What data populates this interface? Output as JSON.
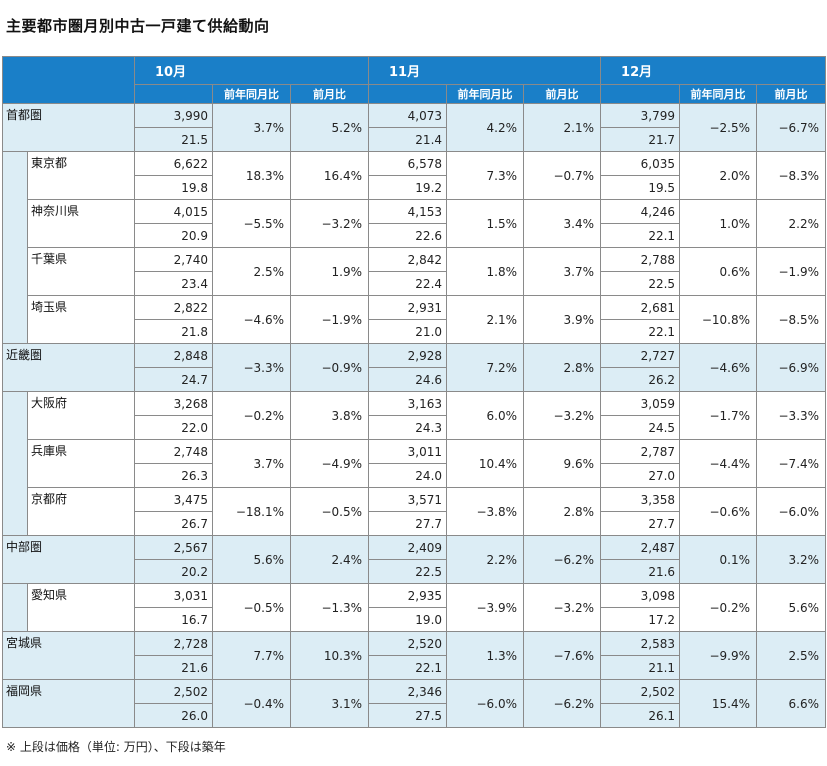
{
  "title": "主要都市圏月別中古一戸建て供給動向",
  "months": [
    "10月",
    "11月",
    "12月"
  ],
  "subheaders": {
    "yoy": "前年同月比",
    "mom": "前月比"
  },
  "note": "※ 上段は価格（単位: 万円）、下段は築年",
  "rows": [
    {
      "name": "首都圏",
      "level": 0,
      "m": [
        {
          "price": "3,990",
          "age": "21.5",
          "yoy": "3.7%",
          "mom": "5.2%"
        },
        {
          "price": "4,073",
          "age": "21.4",
          "yoy": "4.2%",
          "mom": "2.1%"
        },
        {
          "price": "3,799",
          "age": "21.7",
          "yoy": "−2.5%",
          "mom": "−6.7%"
        }
      ]
    },
    {
      "name": "東京都",
      "level": 1,
      "m": [
        {
          "price": "6,622",
          "age": "19.8",
          "yoy": "18.3%",
          "mom": "16.4%"
        },
        {
          "price": "6,578",
          "age": "19.2",
          "yoy": "7.3%",
          "mom": "−0.7%"
        },
        {
          "price": "6,035",
          "age": "19.5",
          "yoy": "2.0%",
          "mom": "−8.3%"
        }
      ]
    },
    {
      "name": "神奈川県",
      "level": 1,
      "m": [
        {
          "price": "4,015",
          "age": "20.9",
          "yoy": "−5.5%",
          "mom": "−3.2%"
        },
        {
          "price": "4,153",
          "age": "22.6",
          "yoy": "1.5%",
          "mom": "3.4%"
        },
        {
          "price": "4,246",
          "age": "22.1",
          "yoy": "1.0%",
          "mom": "2.2%"
        }
      ]
    },
    {
      "name": "千葉県",
      "level": 1,
      "m": [
        {
          "price": "2,740",
          "age": "23.4",
          "yoy": "2.5%",
          "mom": "1.9%"
        },
        {
          "price": "2,842",
          "age": "22.4",
          "yoy": "1.8%",
          "mom": "3.7%"
        },
        {
          "price": "2,788",
          "age": "22.5",
          "yoy": "0.6%",
          "mom": "−1.9%"
        }
      ]
    },
    {
      "name": "埼玉県",
      "level": 1,
      "m": [
        {
          "price": "2,822",
          "age": "21.8",
          "yoy": "−4.6%",
          "mom": "−1.9%"
        },
        {
          "price": "2,931",
          "age": "21.0",
          "yoy": "2.1%",
          "mom": "3.9%"
        },
        {
          "price": "2,681",
          "age": "22.1",
          "yoy": "−10.8%",
          "mom": "−8.5%"
        }
      ]
    },
    {
      "name": "近畿圏",
      "level": 0,
      "m": [
        {
          "price": "2,848",
          "age": "24.7",
          "yoy": "−3.3%",
          "mom": "−0.9%"
        },
        {
          "price": "2,928",
          "age": "24.6",
          "yoy": "7.2%",
          "mom": "2.8%"
        },
        {
          "price": "2,727",
          "age": "26.2",
          "yoy": "−4.6%",
          "mom": "−6.9%"
        }
      ]
    },
    {
      "name": "大阪府",
      "level": 1,
      "m": [
        {
          "price": "3,268",
          "age": "22.0",
          "yoy": "−0.2%",
          "mom": "3.8%"
        },
        {
          "price": "3,163",
          "age": "24.3",
          "yoy": "6.0%",
          "mom": "−3.2%"
        },
        {
          "price": "3,059",
          "age": "24.5",
          "yoy": "−1.7%",
          "mom": "−3.3%"
        }
      ]
    },
    {
      "name": "兵庫県",
      "level": 1,
      "m": [
        {
          "price": "2,748",
          "age": "26.3",
          "yoy": "3.7%",
          "mom": "−4.9%"
        },
        {
          "price": "3,011",
          "age": "24.0",
          "yoy": "10.4%",
          "mom": "9.6%"
        },
        {
          "price": "2,787",
          "age": "27.0",
          "yoy": "−4.4%",
          "mom": "−7.4%"
        }
      ]
    },
    {
      "name": "京都府",
      "level": 1,
      "m": [
        {
          "price": "3,475",
          "age": "26.7",
          "yoy": "−18.1%",
          "mom": "−0.5%"
        },
        {
          "price": "3,571",
          "age": "27.7",
          "yoy": "−3.8%",
          "mom": "2.8%"
        },
        {
          "price": "3,358",
          "age": "27.7",
          "yoy": "−0.6%",
          "mom": "−6.0%"
        }
      ]
    },
    {
      "name": "中部圏",
      "level": 0,
      "m": [
        {
          "price": "2,567",
          "age": "20.2",
          "yoy": "5.6%",
          "mom": "2.4%"
        },
        {
          "price": "2,409",
          "age": "22.5",
          "yoy": "2.2%",
          "mom": "−6.2%"
        },
        {
          "price": "2,487",
          "age": "21.6",
          "yoy": "0.1%",
          "mom": "3.2%"
        }
      ]
    },
    {
      "name": "愛知県",
      "level": 1,
      "m": [
        {
          "price": "3,031",
          "age": "16.7",
          "yoy": "−0.5%",
          "mom": "−1.3%"
        },
        {
          "price": "2,935",
          "age": "19.0",
          "yoy": "−3.9%",
          "mom": "−3.2%"
        },
        {
          "price": "3,098",
          "age": "17.2",
          "yoy": "−0.2%",
          "mom": "5.6%"
        }
      ]
    },
    {
      "name": "宮城県",
      "level": 0,
      "m": [
        {
          "price": "2,728",
          "age": "21.6",
          "yoy": "7.7%",
          "mom": "10.3%"
        },
        {
          "price": "2,520",
          "age": "22.1",
          "yoy": "1.3%",
          "mom": "−7.6%"
        },
        {
          "price": "2,583",
          "age": "21.1",
          "yoy": "−9.9%",
          "mom": "2.5%"
        }
      ]
    },
    {
      "name": "福岡県",
      "level": 0,
      "m": [
        {
          "price": "2,502",
          "age": "26.0",
          "yoy": "−0.4%",
          "mom": "3.1%"
        },
        {
          "price": "2,346",
          "age": "27.5",
          "yoy": "−6.0%",
          "mom": "−6.2%"
        },
        {
          "price": "2,502",
          "age": "26.1",
          "yoy": "15.4%",
          "mom": "6.6%"
        }
      ]
    }
  ]
}
